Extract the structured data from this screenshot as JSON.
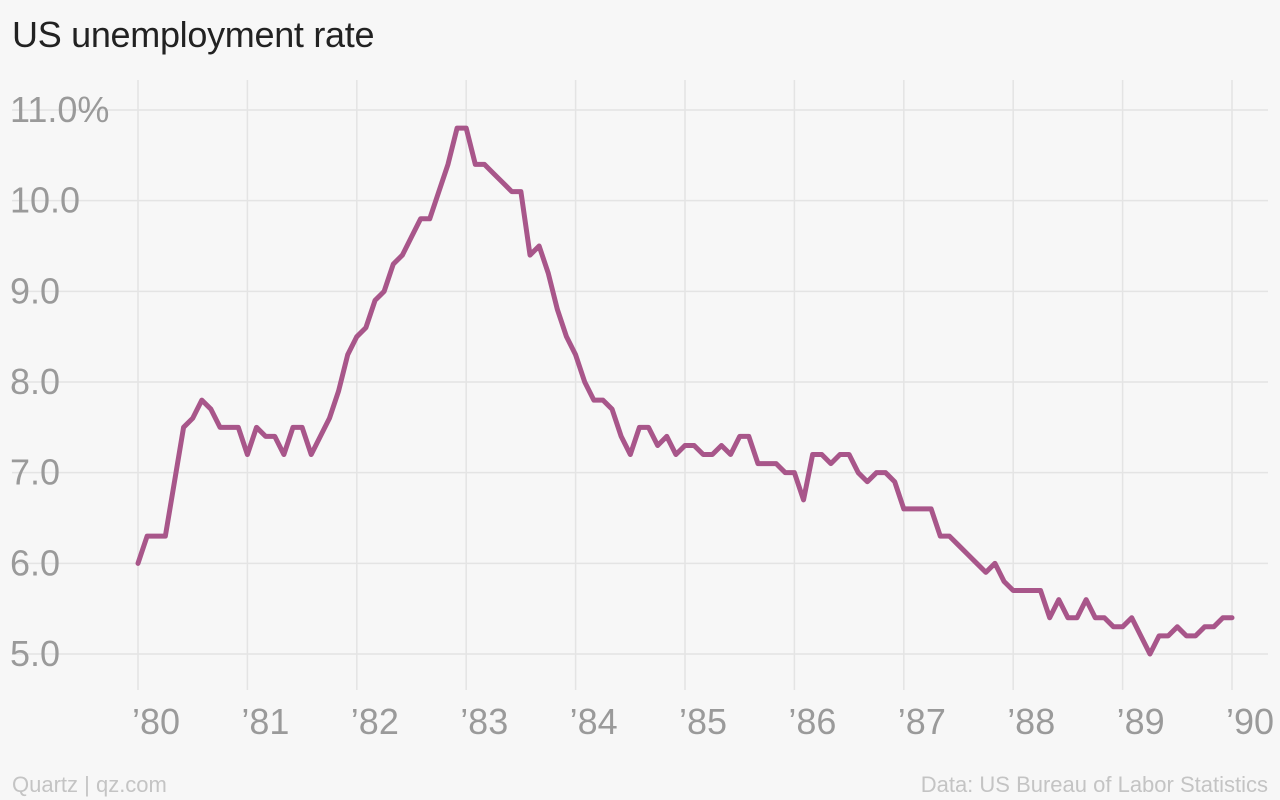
{
  "title": "US unemployment rate",
  "footer": {
    "left": "Quartz | qz.com",
    "right": "Data: US Bureau of Labor Statistics"
  },
  "colors": {
    "line": "#a8568a",
    "grid": "#e4e4e4",
    "tick_text": "#9a9a9a",
    "background": "#f7f7f7"
  },
  "chart_data": {
    "type": "line",
    "title": "US unemployment rate",
    "xlabel": "",
    "ylabel": "",
    "x_start": "1980-01",
    "frequency": "monthly",
    "ylim": [
      5.0,
      11.0
    ],
    "xlim": [
      "1980-01",
      "1990-01"
    ],
    "yticks": [
      {
        "value": 11.0,
        "label": "11.0%"
      },
      {
        "value": 10.0,
        "label": "10.0"
      },
      {
        "value": 9.0,
        "label": "9.0"
      },
      {
        "value": 8.0,
        "label": "8.0"
      },
      {
        "value": 7.0,
        "label": "7.0"
      },
      {
        "value": 6.0,
        "label": "6.0"
      },
      {
        "value": 5.0,
        "label": "5.0"
      }
    ],
    "xticks": [
      {
        "value": 1980,
        "label": "’80"
      },
      {
        "value": 1981,
        "label": "’81"
      },
      {
        "value": 1982,
        "label": "’82"
      },
      {
        "value": 1983,
        "label": "’83"
      },
      {
        "value": 1984,
        "label": "’84"
      },
      {
        "value": 1985,
        "label": "’85"
      },
      {
        "value": 1986,
        "label": "’86"
      },
      {
        "value": 1987,
        "label": "’87"
      },
      {
        "value": 1988,
        "label": "’88"
      },
      {
        "value": 1989,
        "label": "’89"
      },
      {
        "value": 1990,
        "label": "’90"
      }
    ],
    "grid": true,
    "series": [
      {
        "values": [
          6.0,
          6.3,
          6.3,
          6.3,
          6.9,
          7.5,
          7.6,
          7.8,
          7.7,
          7.5,
          7.5,
          7.5,
          7.2,
          7.5,
          7.4,
          7.4,
          7.2,
          7.5,
          7.5,
          7.2,
          7.4,
          7.6,
          7.9,
          8.3,
          8.5,
          8.6,
          8.9,
          9.0,
          9.3,
          9.4,
          9.6,
          9.8,
          9.8,
          10.1,
          10.4,
          10.8,
          10.8,
          10.4,
          10.4,
          10.3,
          10.2,
          10.1,
          10.1,
          9.4,
          9.5,
          9.2,
          8.8,
          8.5,
          8.3,
          8.0,
          7.8,
          7.8,
          7.7,
          7.4,
          7.2,
          7.5,
          7.5,
          7.3,
          7.4,
          7.2,
          7.3,
          7.3,
          7.2,
          7.2,
          7.3,
          7.2,
          7.4,
          7.4,
          7.1,
          7.1,
          7.1,
          7.0,
          7.0,
          6.7,
          7.2,
          7.2,
          7.1,
          7.2,
          7.2,
          7.0,
          6.9,
          7.0,
          7.0,
          6.9,
          6.6,
          6.6,
          6.6,
          6.6,
          6.3,
          6.3,
          6.2,
          6.1,
          6.0,
          5.9,
          6.0,
          5.8,
          5.7,
          5.7,
          5.7,
          5.7,
          5.4,
          5.6,
          5.4,
          5.4,
          5.6,
          5.4,
          5.4,
          5.3,
          5.3,
          5.4,
          5.2,
          5.0,
          5.2,
          5.2,
          5.3,
          5.2,
          5.2,
          5.3,
          5.3,
          5.4,
          5.4
        ]
      }
    ]
  }
}
